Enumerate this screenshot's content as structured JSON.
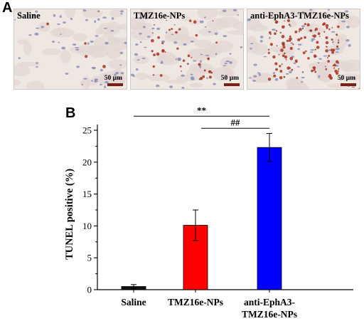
{
  "panel_a": {
    "label": "A",
    "images": [
      {
        "label": "Saline",
        "scale": "50 µm",
        "stain_density": 0.03
      },
      {
        "label": "TMZ16e-NPs",
        "scale": "50 µm",
        "stain_density": 0.35
      },
      {
        "label": "anti-EphA3-TMZ16e-NPs",
        "scale": "50 µm",
        "stain_density": 1.0
      }
    ]
  },
  "panel_b": {
    "label": "B"
  },
  "chart_data": {
    "type": "bar",
    "title": "",
    "xlabel": "",
    "ylabel": "TUNEL positive (%)",
    "ylim": [
      0,
      25
    ],
    "yticks": [
      0,
      5,
      10,
      15,
      20,
      25
    ],
    "categories": [
      "Saline",
      "TMZ16e-NPs",
      "anti-EphA3-TMZ16e-NPs"
    ],
    "category_lines": [
      [
        "Saline"
      ],
      [
        "TMZ16e-NPs"
      ],
      [
        "anti-EphA3-",
        "TMZ16e-NPs"
      ]
    ],
    "values": [
      0.5,
      10.1,
      22.3
    ],
    "errors": [
      0.3,
      2.4,
      2.2
    ],
    "colors": [
      "#111111",
      "#ff0000",
      "#0000ff"
    ],
    "annotations": [
      {
        "text": "**",
        "from": 0,
        "to": 2,
        "y": 27.2
      },
      {
        "text": "##",
        "from": 1,
        "to": 2,
        "y": 25.3
      }
    ],
    "grid": false
  }
}
